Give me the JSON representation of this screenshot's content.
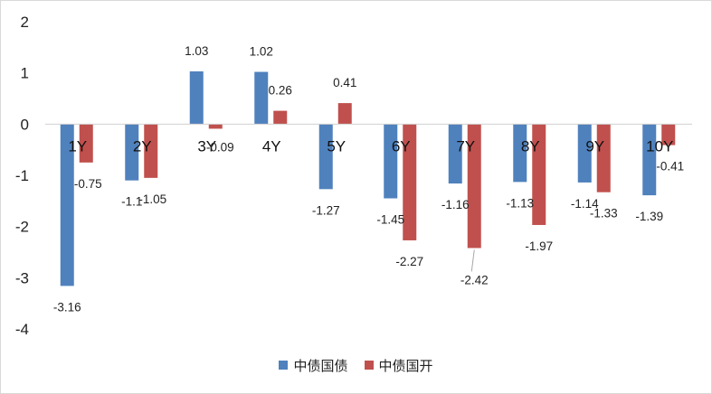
{
  "chart_data": {
    "type": "bar",
    "title": "",
    "xlabel": "",
    "ylabel": "",
    "categories": [
      "1Y",
      "2Y",
      "3Y",
      "4Y",
      "5Y",
      "6Y",
      "7Y",
      "8Y",
      "9Y",
      "10Y"
    ],
    "series": [
      {
        "name": "中债国债",
        "color": "#4f81bd",
        "values": [
          -3.16,
          -1.1,
          1.03,
          1.02,
          -1.27,
          -1.45,
          -1.16,
          -1.13,
          -1.14,
          -1.39
        ],
        "labels": [
          "-3.16",
          "-1.1",
          "1.03",
          "1.02",
          "-1.27",
          "-1.45",
          "-1.16",
          "-1.13",
          "-1.14",
          "-1.39"
        ]
      },
      {
        "name": "中债国开",
        "color": "#c0504d",
        "values": [
          -0.75,
          -1.05,
          -0.09,
          0.26,
          0.41,
          -2.27,
          -2.42,
          -1.97,
          -1.33,
          -0.41
        ],
        "labels": [
          "-0.75",
          "-1.05",
          "-0.09",
          "0.26",
          "0.41",
          "-2.27",
          "-2.42",
          "-1.97",
          "-1.33",
          "-0.41"
        ]
      }
    ],
    "yticks": [
      "2",
      "1",
      "0",
      "-1",
      "-2",
      "-3",
      "-4"
    ],
    "ylim": [
      -4,
      2
    ],
    "grid": false,
    "legend": "bottom"
  }
}
